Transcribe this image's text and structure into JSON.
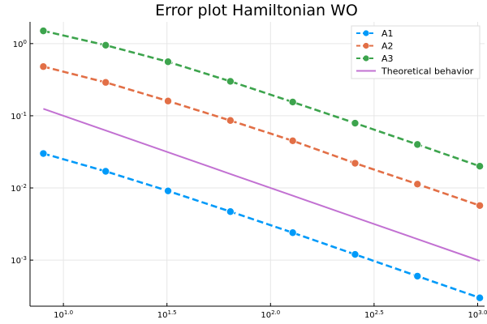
{
  "chart_data": {
    "type": "line",
    "title": "Error plot Hamiltonian WO",
    "xlabel": "",
    "ylabel": "",
    "xscale": "log10",
    "yscale": "log10",
    "xlim": [
      6.9,
      1080
    ],
    "ylim": [
      0.00023,
      2.0
    ],
    "grid": true,
    "legend_position": "top-right",
    "x_ticks": [
      {
        "value": 10,
        "base": "10",
        "exp": "1.0"
      },
      {
        "value": 31.6228,
        "base": "10",
        "exp": "1.5"
      },
      {
        "value": 100,
        "base": "10",
        "exp": "2.0"
      },
      {
        "value": 316.228,
        "base": "10",
        "exp": "2.5"
      },
      {
        "value": 1000,
        "base": "10",
        "exp": "3.0"
      }
    ],
    "y_ticks": [
      {
        "value": 1,
        "base": "10",
        "exp": "0"
      },
      {
        "value": 0.1,
        "base": "10",
        "exp": "-1"
      },
      {
        "value": 0.01,
        "base": "10",
        "exp": "-2"
      },
      {
        "value": 0.001,
        "base": "10",
        "exp": "-3"
      }
    ],
    "x": [
      8,
      16,
      32,
      64,
      128,
      256,
      512,
      1024
    ],
    "series": [
      {
        "name": "A1",
        "color": "#009af9",
        "style": "dashed",
        "marker": "circle",
        "values": [
          0.03,
          0.017,
          0.0091,
          0.0047,
          0.0024,
          0.0012,
          0.0006,
          0.0003
        ]
      },
      {
        "name": " A2",
        "color": "#e26f46",
        "style": "dashed",
        "marker": "circle",
        "values": [
          0.48,
          0.29,
          0.16,
          0.086,
          0.045,
          0.022,
          0.0113,
          0.0057
        ]
      },
      {
        "name": "A3",
        "color": "#3da44d",
        "style": "dashed",
        "marker": "circle",
        "values": [
          1.5,
          0.95,
          0.56,
          0.3,
          0.155,
          0.079,
          0.04,
          0.02
        ]
      },
      {
        "name": "Theoretical behavior",
        "color": "#c271d2",
        "style": "solid",
        "marker": "none",
        "values": [
          0.125,
          0.0625,
          0.03125,
          0.015625,
          0.0078125,
          0.00390625,
          0.001953125,
          0.0009765625
        ]
      }
    ]
  }
}
